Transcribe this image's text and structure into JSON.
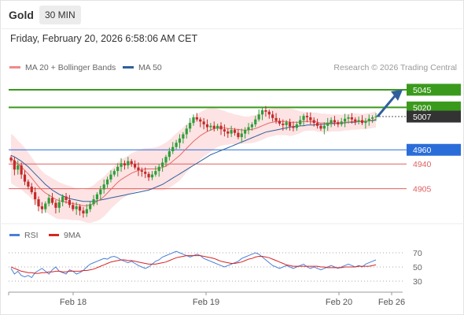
{
  "header": {
    "symbol": "Gold",
    "timeframe": "30 MIN",
    "timestamp": "Friday, February 20, 2026 6:58:06 AM CET"
  },
  "legend": {
    "ma20_label": "MA 20 + Bollinger Bands",
    "ma50_label": "MA 50",
    "credit": "Research © 2026 Trading Central"
  },
  "rsi_legend": {
    "rsi_label": "RSI",
    "ma9_label": "9MA"
  },
  "colors": {
    "up": "#2e9e3a",
    "down": "#c42a2a",
    "ma20": "#e66b6b",
    "band_fill": "#fde0e0",
    "ma50": "#2f5f9e",
    "target_green": "#3a9a1c",
    "pivot_blue": "#2a6dd9",
    "support_red": "#e06060",
    "current_dark": "#333333",
    "arrow": "#2f5f9e",
    "rsi": "#4a7fd6",
    "rsi_ma": "#d82424"
  },
  "chart_data": [
    {
      "type": "candlestick",
      "title": "Gold 30 MIN",
      "x_ticks": [
        "Feb 18",
        "Feb 19",
        "Feb 20",
        "Feb 26"
      ],
      "ylim": [
        4860,
        5065
      ],
      "levels": [
        {
          "value": 5045,
          "label": "5045",
          "kind": "target",
          "style": "solid",
          "color": "#3a9a1c"
        },
        {
          "value": 5020,
          "label": "5020",
          "kind": "target",
          "style": "solid",
          "color": "#3a9a1c"
        },
        {
          "value": 5007,
          "label": "5007",
          "kind": "current",
          "style": "dotted",
          "color": "#333333"
        },
        {
          "value": 4960,
          "label": "4960",
          "kind": "pivot",
          "style": "solid",
          "color": "#2a6dd9"
        },
        {
          "value": 4940,
          "label": "4940",
          "kind": "support",
          "style": "solid",
          "color": "#e06060"
        },
        {
          "value": 4905,
          "label": "4905",
          "kind": "support",
          "style": "solid",
          "color": "#e06060"
        }
      ],
      "closes": [
        4945,
        4932,
        4938,
        4925,
        4915,
        4908,
        4900,
        4890,
        4880,
        4876,
        4884,
        4892,
        4885,
        4878,
        4886,
        4894,
        4889,
        4882,
        4876,
        4880,
        4874,
        4870,
        4876,
        4883,
        4890,
        4897,
        4904,
        4911,
        4918,
        4925,
        4930,
        4936,
        4941,
        4938,
        4944,
        4940,
        4935,
        4931,
        4929,
        4926,
        4921,
        4925,
        4930,
        4936,
        4942,
        4950,
        4958,
        4964,
        4970,
        4976,
        4982,
        4990,
        4998,
        5006,
        5003,
        5000,
        4996,
        4992,
        4994,
        4990,
        4994,
        4989,
        4986,
        4983,
        4988,
        4984,
        4978,
        4983,
        4988,
        4992,
        4996,
        5003,
        5010,
        5016,
        5014,
        5010,
        5005,
        5001,
        4997,
        4995,
        4999,
        4993,
        4991,
        4996,
        5002,
        5008,
        5006,
        5002,
        4998,
        4994,
        4990,
        4994,
        4998,
        5002,
        4999,
        4996,
        5000,
        5004,
        5006,
        5003,
        5000,
        5002,
        4998,
        5001,
        5004,
        5006,
        5007
      ],
      "series": [
        {
          "name": "MA 20 + Bollinger Bands",
          "values": [
            4948,
            4944,
            4940,
            4936,
            4931,
            4926,
            4920,
            4914,
            4908,
            4903,
            4899,
            4896,
            4893,
            4890,
            4888,
            4887,
            4886,
            4885,
            4884,
            4883,
            4882,
            4881,
            4881,
            4882,
            4884,
            4887,
            4890,
            4894,
            4899,
            4904,
            4909,
            4914,
            4918,
            4921,
            4924,
            4927,
            4929,
            4931,
            4932,
            4933,
            4933,
            4933,
            4933,
            4934,
            4935,
            4937,
            4940,
            4944,
            4948,
            4952,
            4957,
            4962,
            4967,
            4972,
            4976,
            4980,
            4983,
            4986,
            4988,
            4990,
            4991,
            4991,
            4991,
            4990,
            4990,
            4989,
            4989,
            4988,
            4988,
            4988,
            4989,
            4990,
            4992,
            4994,
            4996,
            4998,
            4999,
            5000,
            5000,
            5000,
            5000,
            4999,
            4999,
            4999,
            4999,
            5000,
            5000,
            5000,
            5000,
            4999,
            4998,
            4998,
            4998,
            4998,
            4998,
            4998,
            4998,
            4999,
            4999,
            5000,
            5000,
            5000,
            5000,
            5000,
            5001,
            5002,
            5003
          ]
        },
        {
          "name": "MA 50",
          "values": [
            4952,
            4950,
            4947,
            4944,
            4940,
            4936,
            4931,
            4926,
            4921,
            4916,
            4911,
            4907,
            4903,
            4900,
            4897,
            4895,
            4893,
            4891,
            4890,
            4889,
            4888,
            4887,
            4887,
            4887,
            4887,
            4888,
            4889,
            4890,
            4891,
            4892,
            4893,
            4894,
            4895,
            4896,
            4897,
            4898,
            4899,
            4900,
            4901,
            4902,
            4903,
            4905,
            4907,
            4909,
            4911,
            4914,
            4917,
            4920,
            4923,
            4926,
            4929,
            4932,
            4935,
            4938,
            4941,
            4944,
            4947,
            4950,
            4953,
            4955,
            4957,
            4959,
            4961,
            4963,
            4965,
            4967,
            4969,
            4971,
            4973,
            4975,
            4977,
            4979,
            4981,
            4983,
            4985,
            4986,
            4987,
            4988,
            4989,
            4990,
            4991,
            4992,
            4993,
            4993,
            4994,
            4994,
            4995,
            4995,
            4995,
            4996,
            4996,
            4996,
            4997,
            4997,
            4997,
            4998,
            4998,
            4998,
            4999,
            4999,
            4999,
            5000,
            5000,
            5000,
            5001,
            5001,
            5002
          ]
        }
      ]
    },
    {
      "type": "line",
      "title": "RSI",
      "ylim": [
        20,
        80
      ],
      "y_ticks": [
        70,
        50,
        30
      ],
      "series": [
        {
          "name": "RSI",
          "values": [
            48,
            40,
            44,
            38,
            36,
            38,
            35,
            42,
            45,
            48,
            44,
            40,
            46,
            50,
            44,
            42,
            40,
            46,
            44,
            40,
            42,
            45,
            50,
            54,
            56,
            58,
            60,
            62,
            61,
            64,
            65,
            63,
            60,
            58,
            56,
            58,
            55,
            52,
            50,
            48,
            50,
            54,
            58,
            60,
            64,
            66,
            68,
            70,
            72,
            70,
            68,
            66,
            64,
            66,
            68,
            66,
            62,
            60,
            58,
            56,
            54,
            52,
            50,
            52,
            54,
            56,
            58,
            62,
            64,
            66,
            68,
            70,
            68,
            64,
            60,
            56,
            52,
            50,
            48,
            50,
            52,
            50,
            48,
            50,
            52,
            54,
            50,
            48,
            50,
            48,
            46,
            48,
            50,
            52,
            50,
            48,
            50,
            52,
            54,
            52,
            50,
            52,
            50,
            54,
            56,
            58,
            60
          ]
        },
        {
          "name": "9MA",
          "values": [
            50,
            48,
            46,
            44,
            43,
            42,
            42,
            41,
            41,
            42,
            42,
            43,
            43,
            44,
            44,
            43,
            43,
            44,
            44,
            44,
            44,
            45,
            45,
            46,
            47,
            49,
            51,
            53,
            55,
            57,
            58,
            59,
            60,
            60,
            59,
            59,
            58,
            57,
            56,
            55,
            54,
            54,
            54,
            55,
            56,
            57,
            59,
            61,
            63,
            64,
            65,
            66,
            66,
            66,
            66,
            66,
            65,
            64,
            63,
            62,
            60,
            58,
            57,
            56,
            55,
            55,
            56,
            57,
            59,
            61,
            62,
            64,
            65,
            65,
            64,
            63,
            61,
            59,
            57,
            55,
            53,
            52,
            51,
            51,
            51,
            51,
            51,
            51,
            51,
            51,
            50,
            50,
            49,
            49,
            49,
            49,
            49,
            50,
            50,
            50,
            50,
            51,
            51,
            51,
            51,
            52,
            53
          ]
        }
      ]
    }
  ]
}
